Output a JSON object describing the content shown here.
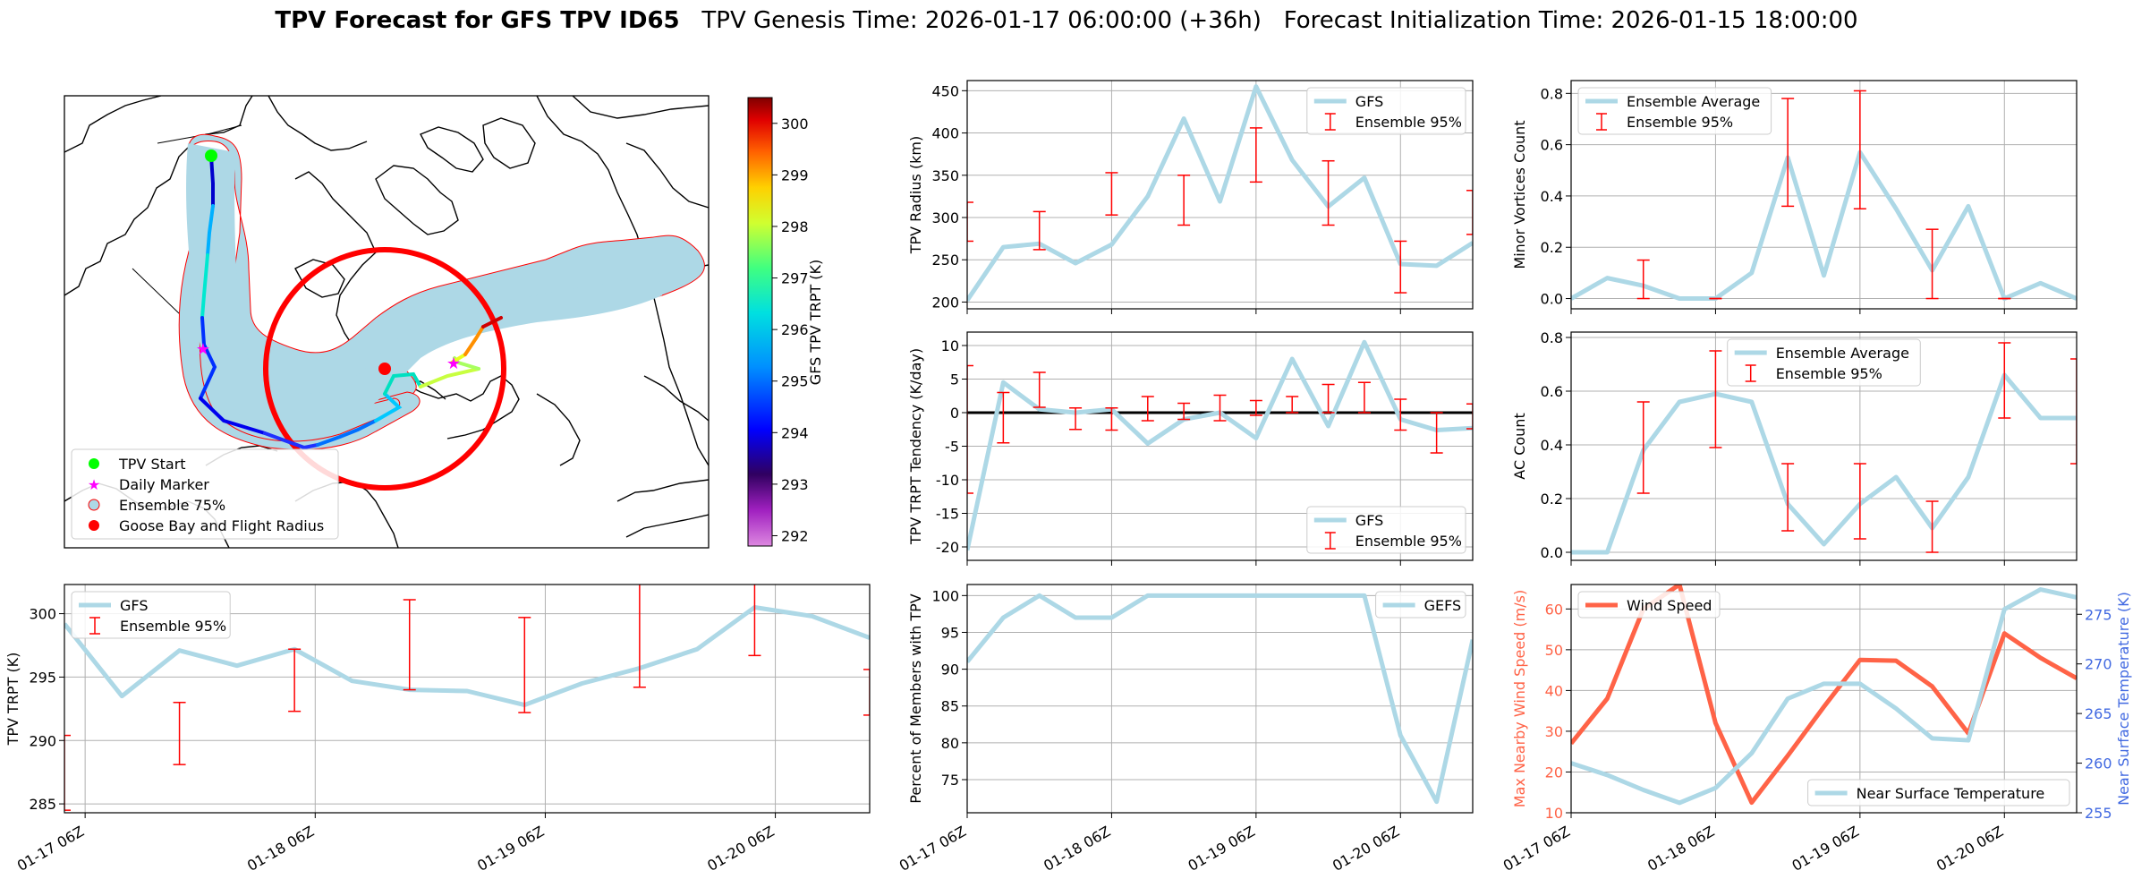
{
  "title": {
    "bold": "TPV Forecast for GFS TPV ID65",
    "rest": "   TPV Genesis Time: 2026-01-17 06:00:00 (+36h)   Forecast Initialization Time: 2026-01-15 18:00:00"
  },
  "colors": {
    "line": "#add8e6",
    "err": "#ff0000",
    "wind": "#ff6347",
    "temp_axis": "#4169e1",
    "map_fill": "#add8e6",
    "circle": "#ff0000"
  },
  "time_ticks": [
    "01-17 06Z",
    "01-18 06Z",
    "01-19 06Z",
    "01-20 06Z"
  ],
  "map": {
    "legend": [
      "TPV Start",
      "Daily Marker",
      "Ensemble 75%",
      "Goose Bay and Flight Radius"
    ],
    "colorbar": {
      "label": "GFS TPV TRPT (K)",
      "ticks": [
        "292",
        "293",
        "294",
        "295",
        "296",
        "297",
        "298",
        "299",
        "300"
      ],
      "range": [
        291.8,
        300.5
      ]
    },
    "icons": [
      "green-circle-marker",
      "magenta-star-marker",
      "lightblue-patch",
      "red-circle-marker"
    ]
  },
  "chart_data": [
    {
      "id": "radius",
      "type": "line",
      "ylabel": "TPV Radius (km)",
      "ylim": [
        192,
        462
      ],
      "yticks": [
        200,
        250,
        300,
        350,
        400,
        450
      ],
      "xlim": [
        0,
        3.5
      ],
      "grid": true,
      "legend_position": "upper right",
      "series": [
        {
          "name": "GFS",
          "x": [
            0,
            0.25,
            0.5,
            0.75,
            1,
            1.25,
            1.5,
            1.75,
            2,
            2.25,
            2.5,
            2.75,
            3,
            3.25,
            3.5
          ],
          "values": [
            202,
            265,
            269,
            246,
            268,
            325,
            417,
            319,
            455,
            368,
            313,
            347,
            245,
            243,
            270
          ]
        }
      ],
      "errorbars": {
        "name": "Ensemble 95%",
        "x": [
          0,
          0.5,
          1,
          1.5,
          2,
          2.5,
          3,
          3.5
        ],
        "low": [
          272,
          262,
          303,
          291,
          342,
          291,
          211,
          280
        ],
        "high": [
          318,
          307,
          353,
          350,
          406,
          367,
          272,
          332
        ]
      }
    },
    {
      "id": "minor",
      "type": "line",
      "ylabel": "Minor Vortices Count",
      "ylim": [
        -0.04,
        0.85
      ],
      "yticks": [
        "0.0",
        "0.2",
        "0.4",
        "0.6",
        "0.8"
      ],
      "xlim": [
        0,
        3.5
      ],
      "grid": true,
      "legend_position": "upper left",
      "series": [
        {
          "name": "Ensemble Average",
          "x": [
            0,
            0.25,
            0.5,
            0.75,
            1,
            1.25,
            1.5,
            1.75,
            2,
            2.25,
            2.5,
            2.75,
            3,
            3.25,
            3.5
          ],
          "values": [
            0,
            0.08,
            0.05,
            0,
            0,
            0.1,
            0.55,
            0.09,
            0.57,
            0.35,
            0.11,
            0.36,
            0,
            0.06,
            0
          ]
        }
      ],
      "errorbars": {
        "name": "Ensemble 95%",
        "x": [
          0.5,
          1,
          1.5,
          2,
          2.5,
          3
        ],
        "low": [
          0,
          0,
          0.36,
          0.35,
          0,
          0
        ],
        "high": [
          0.15,
          0,
          0.78,
          0.81,
          0.27,
          0
        ]
      }
    },
    {
      "id": "tendency",
      "type": "line",
      "ylabel": "TPV TRPT Tendency (K/day)",
      "ylim": [
        -22,
        12
      ],
      "yticks": [
        -20,
        -15,
        -10,
        -5,
        0,
        5,
        10
      ],
      "xlim": [
        0,
        3.5
      ],
      "grid": true,
      "zero_line": true,
      "legend_position": "lower right",
      "series": [
        {
          "name": "GFS",
          "x": [
            0,
            0.25,
            0.5,
            0.75,
            1,
            1.25,
            1.5,
            1.75,
            2,
            2.25,
            2.5,
            2.75,
            3,
            3.25,
            3.5
          ],
          "values": [
            -20.5,
            4.5,
            0.5,
            0,
            0.5,
            -4.6,
            -1,
            0,
            -3.8,
            8,
            -2,
            10.5,
            -1,
            -2.6,
            -2.3
          ]
        }
      ],
      "errorbars": {
        "name": "Ensemble 95%",
        "x": [
          0,
          0.25,
          0.5,
          0.75,
          1,
          1.25,
          1.5,
          1.75,
          2,
          2.25,
          2.5,
          2.75,
          3,
          3.25,
          3.5
        ],
        "low": [
          -12,
          -4.5,
          0.8,
          -2.5,
          -2.6,
          -1.2,
          -1,
          -1.2,
          -0.4,
          0,
          0,
          0,
          -2.6,
          -6,
          -2.4
        ],
        "high": [
          7,
          3,
          6,
          0.7,
          0.7,
          2.4,
          1.4,
          2.6,
          1.8,
          2.4,
          4.2,
          4.5,
          2,
          0,
          1.3
        ]
      }
    },
    {
      "id": "ac",
      "type": "line",
      "ylabel": "AC Count",
      "ylim": [
        -0.03,
        0.82
      ],
      "yticks": [
        "0.0",
        "0.2",
        "0.4",
        "0.6",
        "0.8"
      ],
      "xlim": [
        0,
        3.5
      ],
      "grid": true,
      "legend_position": "upper center",
      "series": [
        {
          "name": "Ensemble Average",
          "x": [
            0,
            0.25,
            0.5,
            0.75,
            1,
            1.25,
            1.5,
            1.75,
            2,
            2.25,
            2.5,
            2.75,
            3,
            3.25,
            3.5
          ],
          "values": [
            0,
            0,
            0.38,
            0.56,
            0.59,
            0.56,
            0.18,
            0.03,
            0.18,
            0.28,
            0.09,
            0.28,
            0.66,
            0.5,
            0.5
          ]
        }
      ],
      "errorbars": {
        "name": "Ensemble 95%",
        "x": [
          0.5,
          1,
          1.5,
          2,
          2.5,
          3,
          3.5
        ],
        "low": [
          0.22,
          0.39,
          0.08,
          0.05,
          0,
          0.5,
          0.33
        ],
        "high": [
          0.56,
          0.75,
          0.33,
          0.33,
          0.19,
          0.78,
          0.72
        ]
      }
    },
    {
      "id": "trpt",
      "type": "line",
      "ylabel": "TPV TRPT (K)",
      "ylim": [
        284.3,
        302.3
      ],
      "yticks": [
        285,
        290,
        295,
        300
      ],
      "xlim": [
        0,
        3.5
      ],
      "grid": true,
      "legend_position": "upper left",
      "series": [
        {
          "name": "GFS",
          "x": [
            0,
            0.25,
            0.5,
            0.75,
            1,
            1.25,
            1.5,
            1.75,
            2,
            2.25,
            2.5,
            2.75,
            3,
            3.25,
            3.5
          ],
          "values": [
            299.2,
            293.5,
            297.1,
            295.9,
            297.2,
            294.7,
            294.0,
            293.9,
            292.8,
            294.5,
            295.7,
            297.2,
            300.5,
            299.8,
            298.1
          ]
        }
      ],
      "errorbars": {
        "name": "Ensemble 95%",
        "x": [
          0,
          0.5,
          1,
          1.5,
          2,
          2.5,
          3,
          3.5
        ],
        "low": [
          284.5,
          288.1,
          292.3,
          294.0,
          292.2,
          294.2,
          296.7,
          292.0
        ],
        "high": [
          290.4,
          293.0,
          297.2,
          301.1,
          299.7,
          303.3,
          303.3,
          295.6
        ]
      }
    },
    {
      "id": "percent",
      "type": "line",
      "ylabel": "Percent of Members with TPV",
      "ylim": [
        70.5,
        101.5
      ],
      "yticks": [
        75,
        80,
        85,
        90,
        95,
        100
      ],
      "xlim": [
        0,
        3.5
      ],
      "grid": true,
      "legend_position": "upper right",
      "series": [
        {
          "name": "GEFS",
          "x": [
            0,
            0.25,
            0.5,
            0.75,
            1,
            1.25,
            1.5,
            1.75,
            2,
            2.25,
            2.5,
            2.75,
            3,
            3.25,
            3.5
          ],
          "values": [
            91,
            97,
            100,
            97,
            97,
            100,
            100,
            100,
            100,
            100,
            100,
            100,
            81,
            72,
            94
          ]
        }
      ]
    },
    {
      "id": "wind_temp",
      "type": "line",
      "ylabel": "Max Nearby Wind Speed (m/s)",
      "ylabel_right": "Near Surface Temperature (K)",
      "ylim": [
        10,
        66
      ],
      "yticks": [
        10,
        20,
        30,
        40,
        50,
        60
      ],
      "ylim_right": [
        255,
        278
      ],
      "yticks_right": [
        255,
        260,
        265,
        270,
        275
      ],
      "xlim": [
        0,
        3.5
      ],
      "grid": true,
      "legend_position": "upper left / lower right",
      "series": [
        {
          "name": "Wind Speed",
          "axis": "left",
          "x": [
            0,
            0.25,
            0.5,
            0.75,
            1,
            1.25,
            1.5,
            1.75,
            2,
            2.25,
            2.5,
            2.75,
            3,
            3.25,
            3.5
          ],
          "values": [
            27,
            38,
            60,
            66,
            32,
            12.5,
            24,
            36,
            47.5,
            47.3,
            41,
            29.5,
            54,
            48,
            43
          ]
        },
        {
          "name": "Near Surface Temperature",
          "axis": "right",
          "x": [
            0,
            0.25,
            0.5,
            0.75,
            1,
            1.25,
            1.5,
            1.75,
            2,
            2.25,
            2.5,
            2.75,
            3,
            3.25,
            3.5
          ],
          "values": [
            260,
            258.8,
            257.3,
            256,
            257.5,
            261,
            266.5,
            268,
            268,
            265.5,
            262.5,
            262.3,
            275.5,
            277.5,
            276.7
          ]
        }
      ]
    }
  ]
}
